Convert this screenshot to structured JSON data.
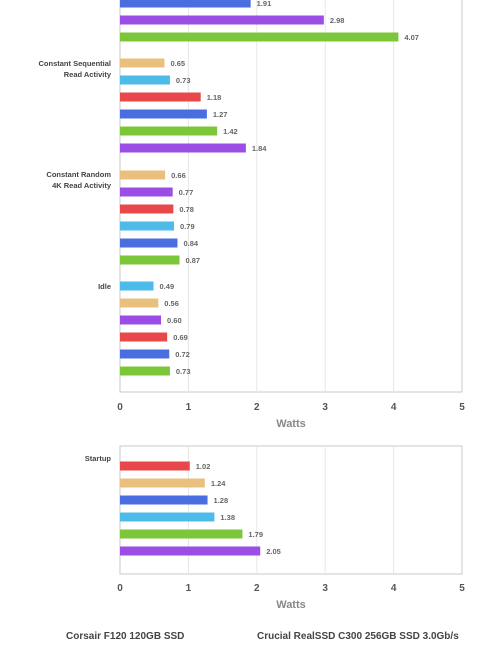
{
  "colors": {
    "red": "#e8484a",
    "blue": "#4a6de0",
    "purple": "#9b4de6",
    "green": "#7cc63a",
    "tan": "#e9c07e",
    "cyan": "#4dbbe8",
    "gridline": "#e6e6e6",
    "frame": "#c9c9c9",
    "axis_text": "#555555",
    "value_text": "#666666",
    "group_text": "#444444"
  },
  "chart_data": [
    {
      "type": "bar",
      "orientation": "horizontal",
      "xlabel": "Watts",
      "xlim": [
        0,
        5
      ],
      "x_ticks": [
        "0",
        "1",
        "2",
        "3",
        "4",
        "5"
      ],
      "grid": true,
      "groups": [
        {
          "label": "",
          "bars": [
            {
              "value": 1.91,
              "label": "1.91",
              "color": "blue"
            },
            {
              "value": 2.98,
              "label": "2.98",
              "color": "purple"
            },
            {
              "value": 4.07,
              "label": "4.07",
              "color": "green"
            }
          ]
        },
        {
          "label": "Constant Sequential Read Activity",
          "label_lines": [
            "Constant Sequential",
            "Read Activity"
          ],
          "bars": [
            {
              "value": 0.65,
              "label": "0.65",
              "color": "tan"
            },
            {
              "value": 0.73,
              "label": "0.73",
              "color": "cyan"
            },
            {
              "value": 1.18,
              "label": "1.18",
              "color": "red"
            },
            {
              "value": 1.27,
              "label": "1.27",
              "color": "blue"
            },
            {
              "value": 1.42,
              "label": "1.42",
              "color": "green"
            },
            {
              "value": 1.84,
              "label": "1.84",
              "color": "purple"
            }
          ]
        },
        {
          "label": "Constant Random 4K Read Activity",
          "label_lines": [
            "Constant Random",
            "4K Read Activity"
          ],
          "bars": [
            {
              "value": 0.66,
              "label": "0.66",
              "color": "tan"
            },
            {
              "value": 0.77,
              "label": "0.77",
              "color": "purple"
            },
            {
              "value": 0.78,
              "label": "0.78",
              "color": "red"
            },
            {
              "value": 0.79,
              "label": "0.79",
              "color": "cyan"
            },
            {
              "value": 0.84,
              "label": "0.84",
              "color": "blue"
            },
            {
              "value": 0.87,
              "label": "0.87",
              "color": "green"
            }
          ]
        },
        {
          "label": "Idle",
          "label_lines": [
            "Idle"
          ],
          "bars": [
            {
              "value": 0.49,
              "label": "0.49",
              "color": "cyan"
            },
            {
              "value": 0.56,
              "label": "0.56",
              "color": "tan"
            },
            {
              "value": 0.6,
              "label": "0.60",
              "color": "purple"
            },
            {
              "value": 0.69,
              "label": "0.69",
              "color": "red"
            },
            {
              "value": 0.72,
              "label": "0.72",
              "color": "blue"
            },
            {
              "value": 0.73,
              "label": "0.73",
              "color": "green"
            }
          ]
        }
      ]
    },
    {
      "type": "bar",
      "orientation": "horizontal",
      "xlabel": "Watts",
      "xlim": [
        0,
        5
      ],
      "x_ticks": [
        "0",
        "1",
        "2",
        "3",
        "4",
        "5"
      ],
      "grid": true,
      "groups": [
        {
          "label": "Startup",
          "label_lines": [
            "Startup"
          ],
          "bars": [
            {
              "value": 1.02,
              "label": "1.02",
              "color": "red"
            },
            {
              "value": 1.24,
              "label": "1.24",
              "color": "tan"
            },
            {
              "value": 1.28,
              "label": "1.28",
              "color": "blue"
            },
            {
              "value": 1.38,
              "label": "1.38",
              "color": "cyan"
            },
            {
              "value": 1.79,
              "label": "1.79",
              "color": "green"
            },
            {
              "value": 2.05,
              "label": "2.05",
              "color": "purple"
            }
          ]
        }
      ]
    }
  ],
  "legend": {
    "items": [
      {
        "name": "Corsair F120 120GB SSD"
      },
      {
        "name": "Crucial RealSSD C300 256GB SSD 3.0Gb/s"
      }
    ]
  }
}
